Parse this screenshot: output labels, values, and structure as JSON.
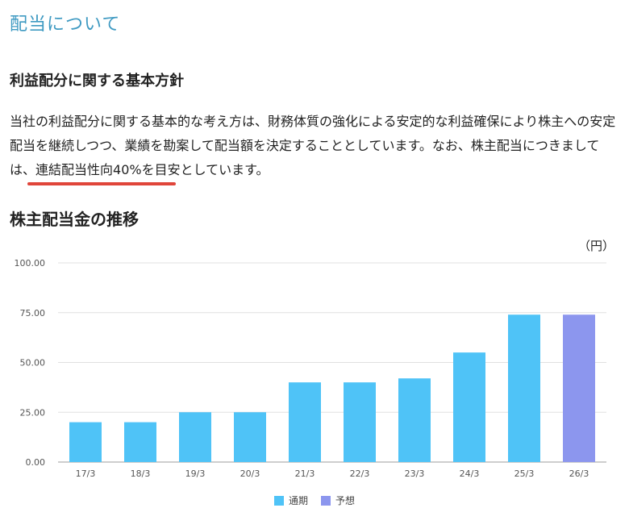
{
  "page": {
    "section_title": "配当について",
    "policy_heading": "利益配分に関する基本方針",
    "policy_text_before": "当社の利益配分に関する基本的な考え方は、財務体質の強化による安定的な利益確保により株主への安定配当を継続しつつ、業績を勘案して配当額を決定することとしています。なお、株主配当につきましては、",
    "policy_text_emphasis": "連結配当性向40%を目安",
    "policy_text_after": "としています。",
    "chart_heading": "株主配当金の推移",
    "unit_label": "（円）"
  },
  "colors": {
    "actual": "#4fc3f7",
    "forecast": "#8c96ee",
    "title": "#3f9ac2",
    "emphasis_underline": "#e0453a",
    "grid": "#e0e0e0"
  },
  "chart_data": {
    "type": "bar",
    "categories": [
      "17/3",
      "18/3",
      "19/3",
      "20/3",
      "21/3",
      "22/3",
      "23/3",
      "24/3",
      "25/3",
      "26/3"
    ],
    "series": [
      {
        "name": "通期",
        "values": [
          20,
          20,
          25,
          25,
          40,
          40,
          42,
          55,
          74,
          null
        ]
      },
      {
        "name": "予想",
        "values": [
          null,
          null,
          null,
          null,
          null,
          null,
          null,
          null,
          null,
          74
        ]
      }
    ],
    "y_ticks": [
      "0.00",
      "25.00",
      "50.00",
      "75.00",
      "100.00"
    ],
    "ylim": [
      0,
      100
    ],
    "grid": true,
    "legend_position": "bottom"
  }
}
